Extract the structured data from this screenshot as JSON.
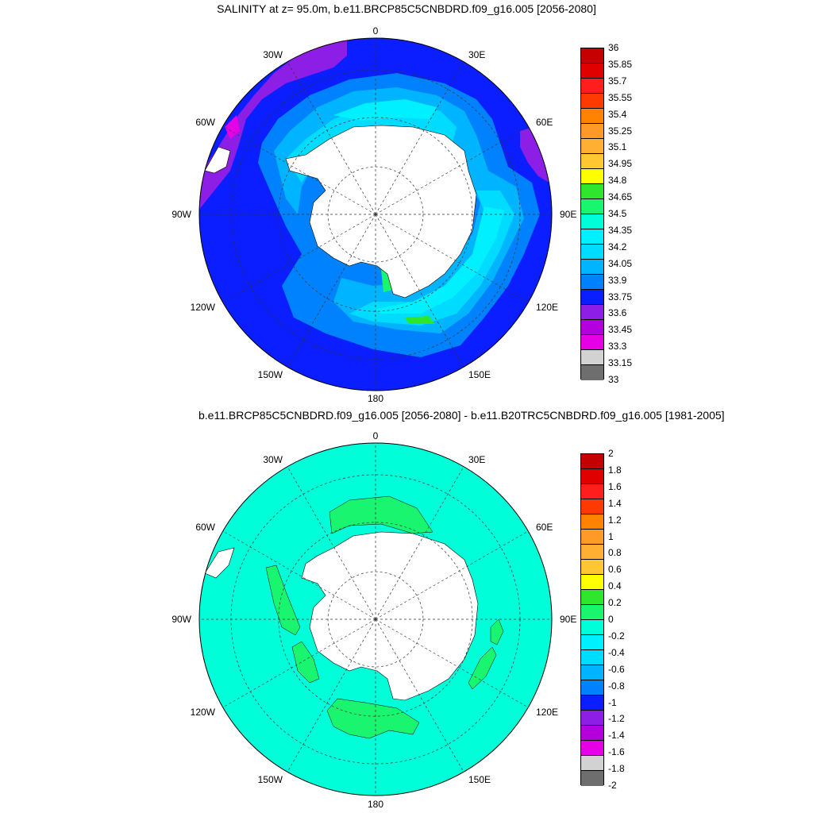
{
  "maps": [
    {
      "title": "SALINITY at z=  95.0m, b.e11.BRCP85C5CNBDRD.f09_g16.005 [2056-2080]",
      "lon_labels": [
        "0",
        "30E",
        "60E",
        "90E",
        "120E",
        "150E",
        "180",
        "150W",
        "120W",
        "90W",
        "60W",
        "30W"
      ],
      "colorbar": {
        "levels": [
          "36",
          "35.85",
          "35.7",
          "35.55",
          "35.4",
          "35.25",
          "35.1",
          "34.95",
          "34.8",
          "34.65",
          "34.5",
          "34.35",
          "34.2",
          "34.05",
          "33.9",
          "33.75",
          "33.6",
          "33.45",
          "33.3",
          "33.15",
          "33"
        ],
        "colors": [
          "#c40000",
          "#e00000",
          "#ff1e1e",
          "#ff3a00",
          "#ff8200",
          "#ff9a28",
          "#ffaf32",
          "#ffc832",
          "#ffff00",
          "#2ee62e",
          "#19f56e",
          "#00ffd8",
          "#00f0ff",
          "#00dcff",
          "#00b4ff",
          "#0082ff",
          "#0a1eff",
          "#8c1ee6",
          "#b400dc",
          "#e600e6",
          "#d2d2d2",
          "#6e6e6e"
        ]
      }
    },
    {
      "title": "b.e11.BRCP85C5CNBDRD.f09_g16.005 [2056-2080] - b.e11.B20TRC5CNBDRD.f09_g16.005 [1981-2005]",
      "lon_labels": [
        "0",
        "30E",
        "60E",
        "90E",
        "120E",
        "150E",
        "180",
        "150W",
        "120W",
        "90W",
        "60W",
        "30W"
      ],
      "colorbar": {
        "levels": [
          "2",
          "1.8",
          "1.6",
          "1.4",
          "1.2",
          "1",
          "0.8",
          "0.6",
          "0.4",
          "0.2",
          "0",
          "-0.2",
          "-0.4",
          "-0.6",
          "-0.8",
          "-1",
          "-1.2",
          "-1.4",
          "-1.6",
          "-1.8",
          "-2"
        ],
        "colors": [
          "#c40000",
          "#e00000",
          "#ff1e1e",
          "#ff3a00",
          "#ff8200",
          "#ff9a28",
          "#ffaf32",
          "#ffc832",
          "#ffff00",
          "#2ee62e",
          "#19f56e",
          "#00ffd8",
          "#00f0ff",
          "#00dcff",
          "#00b4ff",
          "#0082ff",
          "#0a1eff",
          "#8c1ee6",
          "#b400dc",
          "#e600e6",
          "#d2d2d2",
          "#6e6e6e"
        ]
      }
    }
  ],
  "colors": {
    "ocean_base_1": "#0a1eff",
    "ocean_base_2": "#00ffd8",
    "land": "#ffffff"
  }
}
